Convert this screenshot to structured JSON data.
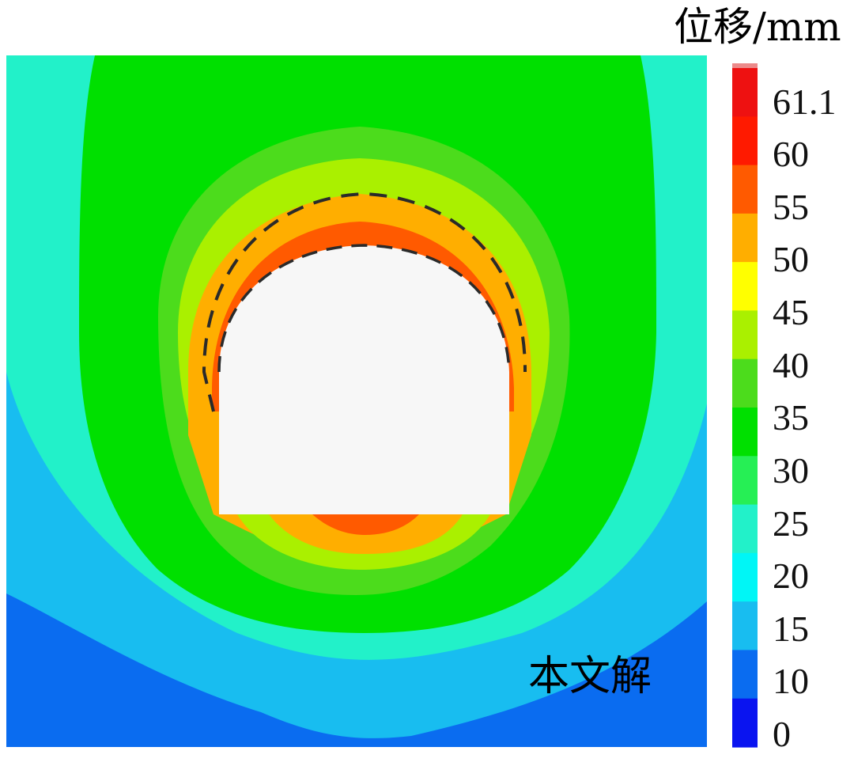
{
  "chart_data": {
    "type": "heatmap",
    "title": "",
    "colorbar": {
      "title": "位移/mm",
      "tick_labels": [
        "61.1",
        "60",
        "55",
        "50",
        "45",
        "40",
        "35",
        "30",
        "25",
        "20",
        "15",
        "10",
        "0"
      ],
      "levels": [
        {
          "min": 61.1,
          "color": "#ee1111"
        },
        {
          "min": 60,
          "max": 61.1,
          "color": "#ff1a00"
        },
        {
          "min": 55,
          "max": 60,
          "color": "#ff5a00"
        },
        {
          "min": 50,
          "max": 55,
          "color": "#ffae00"
        },
        {
          "min": 45,
          "max": 50,
          "color": "#ffff00"
        },
        {
          "min": 40,
          "max": 45,
          "color": "#aaf000"
        },
        {
          "min": 35,
          "max": 40,
          "color": "#4cdc1c"
        },
        {
          "min": 30,
          "max": 35,
          "color": "#00e000"
        },
        {
          "min": 25,
          "max": 30,
          "color": "#26ef55"
        },
        {
          "min": 20,
          "max": 25,
          "color": "#22f1c9"
        },
        {
          "min": 15,
          "max": 20,
          "color": "#00f6f6"
        },
        {
          "min": 10,
          "max": 15,
          "color": "#18bdf0"
        },
        {
          "min": 0,
          "max": 10,
          "color": "#0a6cf0"
        }
      ],
      "lowest_color": "#0a14f0",
      "cap_color": "#ec8a8a"
    },
    "tunnel_fill": "#f7f7f7",
    "dashed_line_color": "#2a2a2a",
    "annotation": "本文解"
  }
}
